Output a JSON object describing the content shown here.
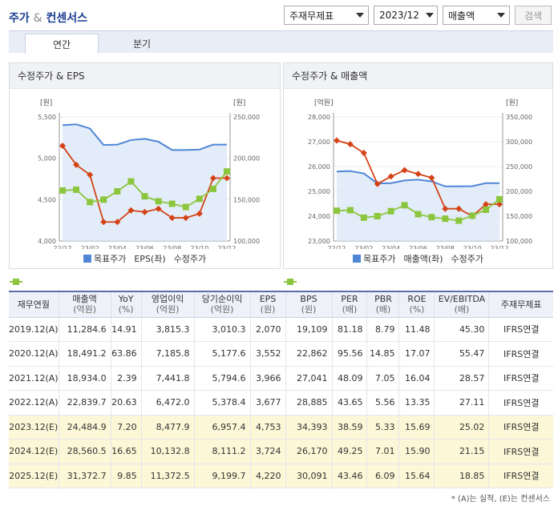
{
  "header": {
    "title_main": "주가",
    "title_amp": "&",
    "title_sub": "컨센서스",
    "select_standard": "주재무제표",
    "select_period": "2023/12",
    "select_item": "매출액",
    "search_button": "검색"
  },
  "tabs": [
    {
      "label": "연간",
      "active": true
    },
    {
      "label": "분기",
      "active": false
    }
  ],
  "chart_left": {
    "title": "수정주가 & EPS",
    "left_unit": "[원]",
    "right_unit": "[원]",
    "legend": [
      "목표주가",
      "EPS(좌)",
      "수정주가"
    ]
  },
  "chart_right": {
    "title": "수정주가 & 매출액",
    "left_unit": "[억원]",
    "right_unit": "[원]",
    "legend": [
      "목표주가",
      "매출액(좌)",
      "수정주가"
    ]
  },
  "colors": {
    "target": "#4f86d6",
    "target_fill": "#dce9f8",
    "left_series": "#d44217",
    "price": "#8cc63f"
  },
  "chart_data": [
    {
      "type": "line",
      "title": "수정주가 & EPS",
      "x_ticks": [
        "22/12",
        "23/02",
        "23/04",
        "23/06",
        "23/08",
        "23/10",
        "23/12"
      ],
      "left_axis": {
        "unit": "[원]",
        "range": [
          4000,
          5500
        ],
        "ticks": [
          "4,000",
          "4,500",
          "5,000",
          "5,500"
        ]
      },
      "right_axis": {
        "unit": "[원]",
        "range": [
          100000,
          250000
        ],
        "ticks": [
          "100,000",
          "150,000",
          "200,000",
          "250,000"
        ]
      },
      "series": [
        {
          "name": "목표주가",
          "axis": "right",
          "values": [
            240000,
            241000,
            236000,
            216000,
            216500,
            222000,
            223500,
            220000,
            210000,
            210000,
            210500,
            216500,
            216500
          ]
        },
        {
          "name": "EPS(좌)",
          "axis": "left",
          "values": [
            5150,
            4920,
            4800,
            4230,
            4230,
            4370,
            4350,
            4390,
            4280,
            4280,
            4330,
            4760,
            4760
          ]
        },
        {
          "name": "수정주가",
          "axis": "right",
          "values": [
            161000,
            162000,
            147000,
            150000,
            160000,
            172000,
            154000,
            148000,
            145000,
            141000,
            151000,
            163000,
            184000
          ]
        }
      ]
    },
    {
      "type": "line",
      "title": "수정주가 & 매출액",
      "x_ticks": [
        "22/12",
        "23/02",
        "23/04",
        "23/06",
        "23/08",
        "23/10",
        "23/12"
      ],
      "left_axis": {
        "unit": "[억원]",
        "range": [
          23000,
          28000
        ],
        "ticks": [
          "23,000",
          "24,000",
          "25,000",
          "26,000",
          "27,000",
          "28,000"
        ]
      },
      "right_axis": {
        "unit": "[원]",
        "range": [
          100000,
          350000
        ],
        "ticks": [
          "100,000",
          "150,000",
          "200,000",
          "250,000",
          "300,000",
          "350,000"
        ]
      },
      "series": [
        {
          "name": "목표주가",
          "axis": "right",
          "values": [
            240000,
            241000,
            236000,
            216000,
            216500,
            222000,
            223500,
            220000,
            210000,
            210000,
            210500,
            216500,
            216500
          ]
        },
        {
          "name": "매출액(좌)",
          "axis": "left",
          "values": [
            27050,
            26900,
            26550,
            25300,
            25600,
            25850,
            25700,
            25550,
            24300,
            24300,
            24000,
            24480,
            24480
          ]
        },
        {
          "name": "수정주가",
          "axis": "right",
          "values": [
            161000,
            162000,
            147000,
            150000,
            160000,
            172000,
            154000,
            148000,
            145000,
            141000,
            151000,
            163000,
            184000
          ]
        }
      ]
    }
  ],
  "table": {
    "headers": [
      {
        "main": "재무연월",
        "sub": ""
      },
      {
        "main": "매출액",
        "sub": "(억원)"
      },
      {
        "main": "YoY",
        "sub": "(%)"
      },
      {
        "main": "영업이익",
        "sub": "(억원)"
      },
      {
        "main": "당기순이익",
        "sub": "(억원)"
      },
      {
        "main": "EPS",
        "sub": "(원)"
      },
      {
        "main": "BPS",
        "sub": "(원)"
      },
      {
        "main": "PER",
        "sub": "(배)"
      },
      {
        "main": "PBR",
        "sub": "(배)"
      },
      {
        "main": "ROE",
        "sub": "(%)"
      },
      {
        "main": "EV/EBITDA",
        "sub": "(배)"
      },
      {
        "main": "주재무제표",
        "sub": ""
      }
    ],
    "rows": [
      {
        "est": false,
        "cells": [
          "2019.12(A)",
          "11,284.6",
          "14.91",
          "3,815.3",
          "3,010.3",
          "2,070",
          "19,109",
          "81.18",
          "8.79",
          "11.48",
          "45.30",
          "IFRS연결"
        ]
      },
      {
        "est": false,
        "cells": [
          "2020.12(A)",
          "18,491.2",
          "63.86",
          "7,185.8",
          "5,177.6",
          "3,552",
          "22,862",
          "95.56",
          "14.85",
          "17.07",
          "55.47",
          "IFRS연결"
        ]
      },
      {
        "est": false,
        "cells": [
          "2021.12(A)",
          "18,934.0",
          "2.39",
          "7,441.8",
          "5,794.6",
          "3,966",
          "27,041",
          "48.09",
          "7.05",
          "16.04",
          "28.57",
          "IFRS연결"
        ]
      },
      {
        "est": false,
        "cells": [
          "2022.12(A)",
          "22,839.7",
          "20.63",
          "6,472.0",
          "5,378.4",
          "3,677",
          "28,885",
          "43.65",
          "5.56",
          "13.35",
          "27.11",
          "IFRS연결"
        ]
      },
      {
        "est": true,
        "cells": [
          "2023.12(E)",
          "24,484.9",
          "7.20",
          "8,477.9",
          "6,957.4",
          "4,753",
          "34,393",
          "38.59",
          "5.33",
          "15.69",
          "25.02",
          "IFRS연결"
        ]
      },
      {
        "est": true,
        "cells": [
          "2024.12(E)",
          "28,560.5",
          "16.65",
          "10,132.8",
          "8,111.2",
          "3,724",
          "26,170",
          "49.25",
          "7.01",
          "15.90",
          "21.15",
          "IFRS연결"
        ]
      },
      {
        "est": true,
        "cells": [
          "2025.12(E)",
          "31,372.7",
          "9.85",
          "11,372.5",
          "9,199.7",
          "4,220",
          "30,091",
          "43.46",
          "6.09",
          "15.64",
          "18.85",
          "IFRS연결"
        ]
      }
    ]
  },
  "footnote": "* (A)는 실적, (E)는 컨센서스"
}
